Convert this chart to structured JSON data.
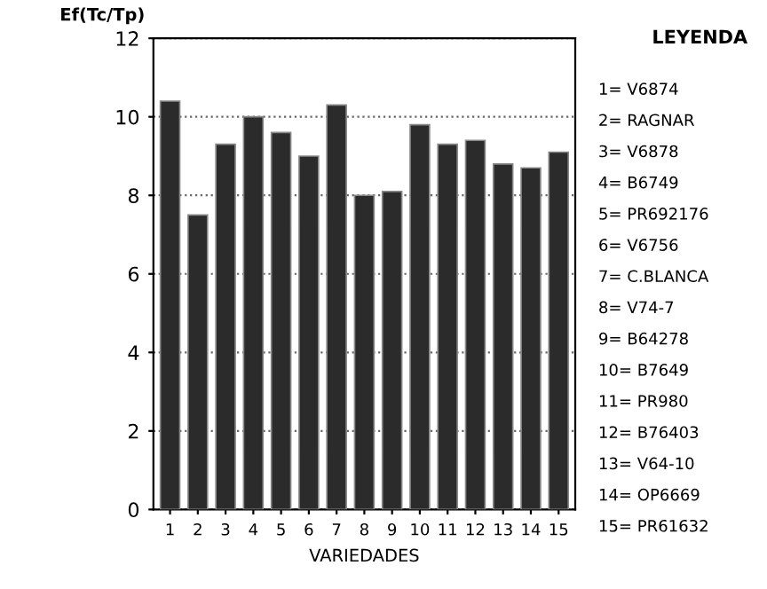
{
  "chart_data": {
    "type": "bar",
    "ylabel": "Ef(Tc/Tp)",
    "xlabel": "VARIEDADES",
    "categories": [
      "1",
      "2",
      "3",
      "4",
      "5",
      "6",
      "7",
      "8",
      "9",
      "10",
      "11",
      "12",
      "13",
      "14",
      "15"
    ],
    "values": [
      10.4,
      7.5,
      9.3,
      10.0,
      9.6,
      9.0,
      10.3,
      8.0,
      8.1,
      9.8,
      9.3,
      9.4,
      8.8,
      8.7,
      9.1
    ],
    "color": "#2b2b2b",
    "ylim": [
      0,
      12
    ],
    "yticks": [
      0,
      2,
      4,
      6,
      8,
      10,
      12
    ],
    "grid": "y",
    "annotations": [
      "LEYENDA",
      "1= V6874",
      "2= RAGNAR",
      "3= V6878",
      "4= B6749",
      "5= PR692176",
      "6= V6756",
      "7= C.BLANCA",
      "8= V74-7",
      "9= B64278",
      "10= B7649",
      "11= PR980",
      "12= B76403",
      "13= V64-10",
      "14= OP6669",
      "15= PR61632"
    ]
  }
}
